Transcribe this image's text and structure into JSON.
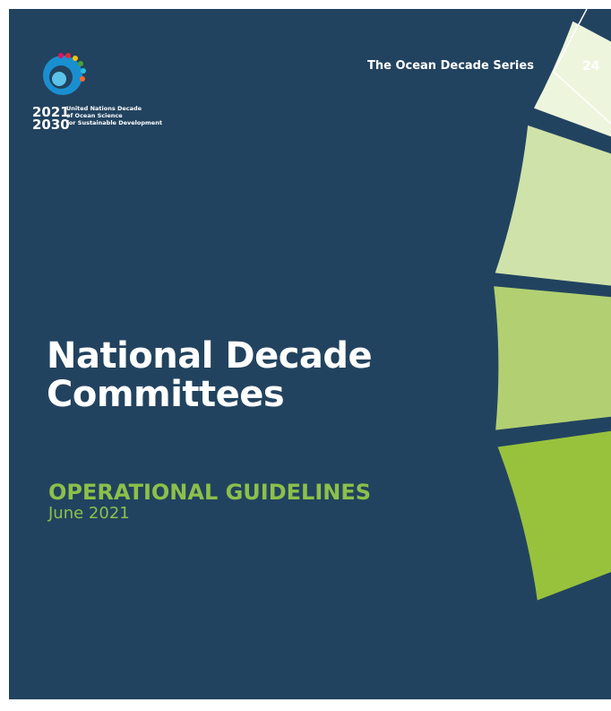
{
  "header": {
    "series": "The Ocean Decade Series",
    "number": "24"
  },
  "logo": {
    "year_start": "2021",
    "year_end": "2030",
    "lines": [
      "United Nations Decade",
      "of Ocean Science",
      "for Sustainable Development"
    ]
  },
  "title": [
    "National Decade",
    "Committees"
  ],
  "subtitle": "OPERATIONAL GUIDELINES",
  "date": "June 2021"
}
